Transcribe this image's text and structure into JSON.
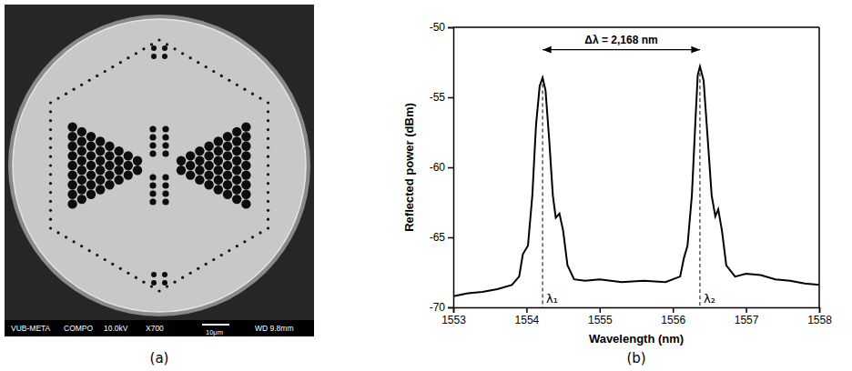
{
  "figure": {
    "labels": [
      "(a)",
      "(b)"
    ]
  },
  "image_a": {
    "info_bar": [
      "VUB-META",
      "COMPO",
      "10.0kV",
      "X700",
      "10μm",
      "WD 9.8mm"
    ]
  },
  "chart_data": {
    "type": "line",
    "x_label": "Wavelength (nm)",
    "y_label": "Reflected power (dBm)",
    "xlim": [
      1553,
      1558
    ],
    "xticks": [
      1553,
      1554,
      1555,
      1556,
      1557,
      1558
    ],
    "ylim": [
      -70,
      -50
    ],
    "yticks": [
      -70,
      -65,
      -60,
      -55,
      -50
    ],
    "grid": false,
    "x": [
      1553.0,
      1553.2,
      1553.4,
      1553.6,
      1553.8,
      1553.9,
      1553.95,
      1554.02,
      1554.08,
      1554.13,
      1554.18,
      1554.22,
      1554.26,
      1554.31,
      1554.36,
      1554.4,
      1554.45,
      1554.5,
      1554.56,
      1554.65,
      1554.8,
      1555.0,
      1555.3,
      1555.6,
      1555.9,
      1556.1,
      1556.15,
      1556.2,
      1556.26,
      1556.31,
      1556.34,
      1556.37,
      1556.42,
      1556.47,
      1556.53,
      1556.58,
      1556.62,
      1556.67,
      1556.73,
      1556.85,
      1557.0,
      1557.2,
      1557.4,
      1557.6,
      1557.8,
      1558.0
    ],
    "series": [
      {
        "color": "#000000",
        "line_style": "solid",
        "values": [
          -69.2,
          -69.0,
          -68.9,
          -68.7,
          -68.4,
          -67.8,
          -66.2,
          -65.6,
          -62.0,
          -57.0,
          -54.2,
          -53.6,
          -54.5,
          -58.0,
          -62.0,
          -63.6,
          -63.3,
          -64.5,
          -67.0,
          -68.0,
          -68.1,
          -68.0,
          -68.2,
          -68.1,
          -68.2,
          -67.8,
          -66.5,
          -65.6,
          -62.0,
          -56.5,
          -53.4,
          -52.8,
          -53.8,
          -57.5,
          -62.0,
          -63.5,
          -63.0,
          -64.5,
          -67.0,
          -67.8,
          -67.6,
          -67.7,
          -68.0,
          -68.1,
          -68.3,
          -68.4
        ]
      }
    ],
    "annotations": [
      {
        "text": "Δλ = 2,168 nm",
        "x": [
          1554.22,
          1556.37
        ],
        "y": -51.6
      },
      {
        "text": "λ₁",
        "x": 1554.22,
        "y": -53.6
      },
      {
        "text": "λ₂",
        "x": 1556.37,
        "y": -52.8
      }
    ]
  }
}
